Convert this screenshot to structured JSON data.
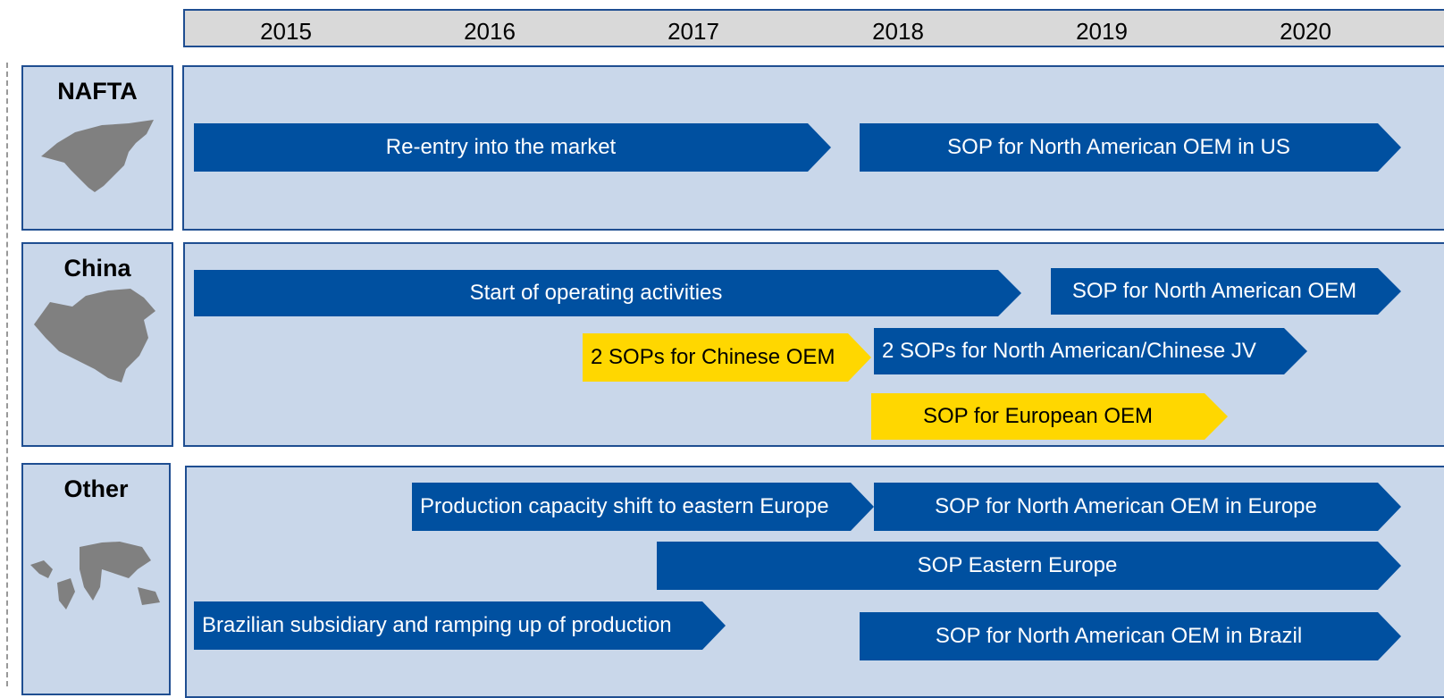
{
  "years": [
    "2015",
    "2016",
    "2017",
    "2018",
    "2019",
    "2020"
  ],
  "regions": [
    {
      "label": "NAFTA",
      "milestones": [
        "Re-entry into the market",
        "SOP for North American OEM in US"
      ]
    },
    {
      "label": "China",
      "milestones": [
        "Start of operating activities",
        "SOP for North American OEM",
        "2 SOPs for Chinese OEM",
        "2 SOPs for North American/Chinese JV",
        "SOP for European OEM"
      ]
    },
    {
      "label": "Other",
      "milestones": [
        "Production capacity shift to eastern Europe",
        "SOP for North American OEM in Europe",
        "SOP Eastern Europe",
        "Brazilian subsidiary and ramping up of production",
        "SOP for North American OEM in Brazil"
      ]
    }
  ]
}
